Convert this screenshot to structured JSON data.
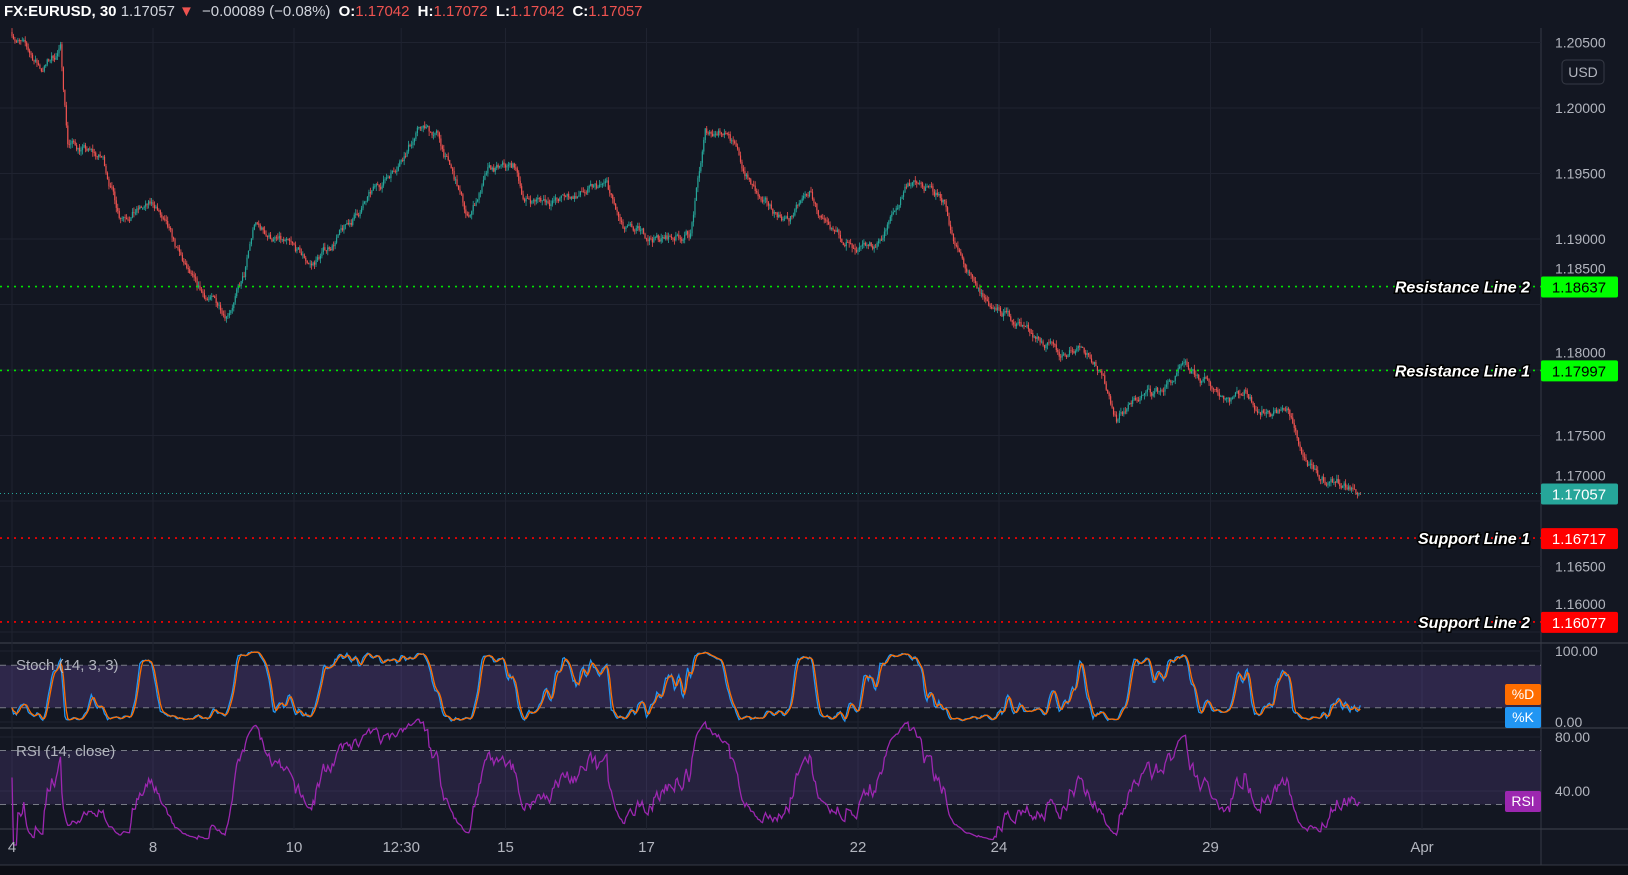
{
  "header": {
    "symbol": "FX:EURUSD, 30",
    "last": "1.17057",
    "direction": "down",
    "change": "−0.00089 (−0.08%)",
    "o_label": "O:",
    "o": "1.17042",
    "h_label": "H:",
    "h": "1.17072",
    "l_label": "L:",
    "l": "1.17042",
    "c_label": "C:",
    "c": "1.17057"
  },
  "currency": "USD",
  "colors": {
    "background": "#131722",
    "up": "#26a69a",
    "down": "#ef5350",
    "resistance": "#00e600",
    "support": "#ff0000",
    "stoch_k": "#2196f3",
    "stoch_d": "#ff6d00",
    "rsi": "#9c27b0",
    "band": "#7e57c2"
  },
  "chart_data": {
    "type": "candlestick",
    "interval": "30",
    "price_ticks": [
      "1.20500",
      "1.20000",
      "1.19500",
      "1.19000",
      "1.18500",
      "1.18000",
      "1.17500",
      "1.17000",
      "1.16500",
      "1.16000"
    ],
    "time_ticks": [
      {
        "t": "03-04 00:00",
        "label": "4"
      },
      {
        "t": "03-08 00:00",
        "label": "8"
      },
      {
        "t": "03-10 00:00",
        "label": "10"
      },
      {
        "t": "03-11 12:30",
        "label": "12:30"
      },
      {
        "t": "03-15 00:00",
        "label": "15"
      },
      {
        "t": "03-17 00:00",
        "label": "17"
      },
      {
        "t": "03-22 00:00",
        "label": "22"
      },
      {
        "t": "03-24 00:00",
        "label": "24"
      },
      {
        "t": "03-29 00:00",
        "label": "29"
      },
      {
        "t": "04-01 00:00",
        "label": "Apr"
      }
    ],
    "close_path": [
      [
        "03-04 00:00",
        1.2058
      ],
      [
        "03-04 10:00",
        1.203
      ],
      [
        "03-04 16:30",
        1.2045
      ],
      [
        "03-04 19:00",
        1.1975
      ],
      [
        "03-05 07:00",
        1.196
      ],
      [
        "03-05 12:30",
        1.192
      ],
      [
        "03-08 01:00",
        1.1925
      ],
      [
        "03-08 08:00",
        1.189
      ],
      [
        "03-08 15:00",
        1.186
      ],
      [
        "03-09 01:00",
        1.1845
      ],
      [
        "03-09 07:00",
        1.187
      ],
      [
        "03-09 10:30",
        1.191
      ],
      [
        "03-09 21:00",
        1.1895
      ],
      [
        "03-10 06:00",
        1.188
      ],
      [
        "03-10 16:30",
        1.1905
      ],
      [
        "03-10 23:30",
        1.1925
      ],
      [
        "03-11 10:00",
        1.1955
      ],
      [
        "03-11 19:00",
        1.1985
      ],
      [
        "03-12 00:30",
        1.198
      ],
      [
        "03-12 07:30",
        1.194
      ],
      [
        "03-12 11:00",
        1.1915
      ],
      [
        "03-12 18:00",
        1.195
      ],
      [
        "03-15 03:00",
        1.1955
      ],
      [
        "03-15 06:30",
        1.193
      ],
      [
        "03-15 18:30",
        1.193
      ],
      [
        "03-16 10:30",
        1.194
      ],
      [
        "03-16 16:00",
        1.1905
      ],
      [
        "03-17 06:00",
        1.19
      ],
      [
        "03-17 15:00",
        1.1905
      ],
      [
        "03-17 20:00",
        1.198
      ],
      [
        "03-18 03:30",
        1.1985
      ],
      [
        "03-18 08:30",
        1.1955
      ],
      [
        "03-18 15:30",
        1.1925
      ],
      [
        "03-19 00:30",
        1.1915
      ],
      [
        "03-19 07:30",
        1.1935
      ],
      [
        "03-19 14:30",
        1.19
      ],
      [
        "03-19 20:00",
        1.19
      ],
      [
        "03-19 23:30",
        1.1885
      ],
      [
        "03-22 06:30",
        1.1895
      ],
      [
        "03-22 13:30",
        1.1925
      ],
      [
        "03-22 17:00",
        1.1945
      ],
      [
        "03-23 05:30",
        1.193
      ],
      [
        "03-23 09:00",
        1.1895
      ],
      [
        "03-23 16:00",
        1.186
      ],
      [
        "03-23 23:00",
        1.1845
      ],
      [
        "03-24 08:00",
        1.1835
      ],
      [
        "03-24 13:30",
        1.1825
      ],
      [
        "03-24 20:30",
        1.181
      ],
      [
        "03-25 03:30",
        1.182
      ],
      [
        "03-25 08:30",
        1.181
      ],
      [
        "03-25 16:00",
        1.1765
      ],
      [
        "03-26 00:30",
        1.178
      ],
      [
        "03-26 07:30",
        1.1785
      ],
      [
        "03-26 14:30",
        1.18
      ],
      [
        "03-26 22:00",
        1.179
      ],
      [
        "03-29 06:30",
        1.178
      ],
      [
        "03-29 12:00",
        1.1785
      ],
      [
        "03-29 17:00",
        1.177
      ],
      [
        "03-30 02:00",
        1.177
      ],
      [
        "03-30 07:30",
        1.1735
      ],
      [
        "03-30 12:30",
        1.1715
      ],
      [
        "03-30 20:00",
        1.1715
      ],
      [
        "03-31 03:00",
        1.17057
      ]
    ],
    "levels": [
      {
        "name": "Resistance Line 2",
        "value": 1.18637,
        "label": "1.18637",
        "kind": "resistance"
      },
      {
        "name": "Resistance Line 1",
        "value": 1.17997,
        "label": "1.17997",
        "kind": "resistance"
      },
      {
        "name": "",
        "value": 1.17057,
        "label": "1.17057",
        "kind": "last"
      },
      {
        "name": "Support Line 1",
        "value": 1.16717,
        "label": "1.16717",
        "kind": "support"
      },
      {
        "name": "Support Line 2",
        "value": 1.16077,
        "label": "1.16077",
        "kind": "support"
      }
    ],
    "indicators": {
      "stoch": {
        "title": "Stoch (14, 3, 3)",
        "ticks": [
          "100.00",
          "0.00"
        ],
        "bands": [
          20,
          80
        ],
        "k_label": "%K",
        "d_label": "%D"
      },
      "rsi": {
        "title": "RSI (14, close)",
        "ticks": [
          "80.00",
          "40.00"
        ],
        "bands": [
          30,
          70
        ],
        "label": "RSI"
      }
    }
  }
}
